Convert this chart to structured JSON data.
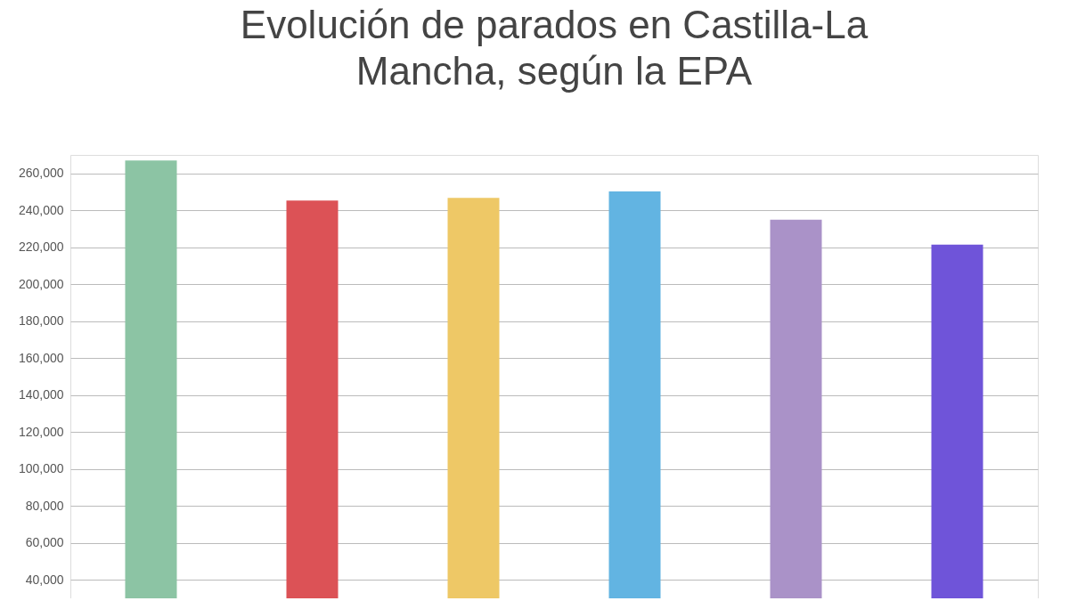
{
  "chart_data": {
    "type": "bar",
    "title": "Evolución de parados en Castilla-La Mancha, según la EPA",
    "categories": [
      null,
      null,
      null,
      null,
      null,
      null
    ],
    "values": [
      267000,
      245300,
      246700,
      250300,
      234900,
      221500
    ],
    "colors": [
      "#8cc4a4",
      "#dc5256",
      "#eec866",
      "#62b4e2",
      "#aa92c8",
      "#6f54d9"
    ],
    "ylim": [
      30000,
      270000
    ],
    "yticks": [
      {
        "value": 40000,
        "label": "40,000"
      },
      {
        "value": 60000,
        "label": "60,000"
      },
      {
        "value": 80000,
        "label": "80,000"
      },
      {
        "value": 100000,
        "label": "100,000"
      },
      {
        "value": 120000,
        "label": "120,000"
      },
      {
        "value": 140000,
        "label": "140,000"
      },
      {
        "value": 160000,
        "label": "160,000"
      },
      {
        "value": 180000,
        "label": "180,000"
      },
      {
        "value": 200000,
        "label": "200,000"
      },
      {
        "value": 220000,
        "label": "220,000"
      },
      {
        "value": 240000,
        "label": "240,000"
      },
      {
        "value": 260000,
        "label": "260,000"
      }
    ],
    "grid": "y",
    "tick_labels": "y"
  }
}
